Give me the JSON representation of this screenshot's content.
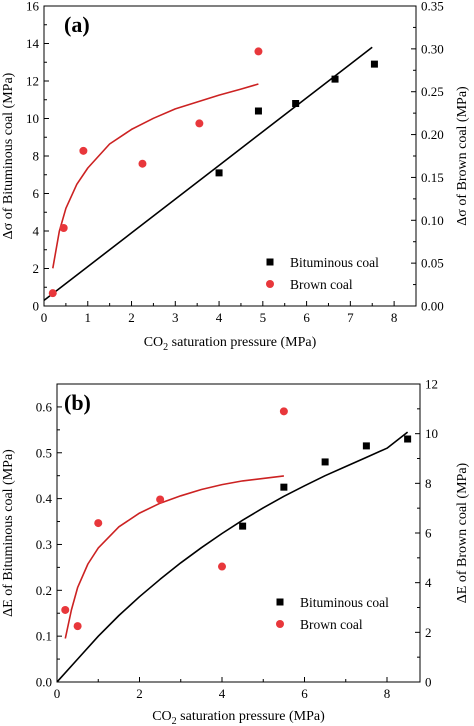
{
  "chart_data": [
    {
      "panel_label": "(a)",
      "type": "scatter",
      "xlabel_parts": [
        "CO",
        "2",
        " saturation pressure (MPa)"
      ],
      "ylabel_left_parts": [
        "Δσ of Bituminous coal (MPa)"
      ],
      "ylabel_right_parts": [
        "Δσ of Brown coal (MPa)"
      ],
      "xlim": [
        0,
        8.5
      ],
      "xticks": [
        0,
        1,
        2,
        3,
        4,
        5,
        6,
        7,
        8
      ],
      "xtick_labels": [
        "0",
        "1",
        "2",
        "3",
        "4",
        "5",
        "6",
        "7",
        "8"
      ],
      "ylim_left": [
        0,
        16
      ],
      "yticks_left": [
        0,
        2,
        4,
        6,
        8,
        10,
        12,
        14,
        16
      ],
      "ytick_labels_left": [
        "0",
        "2",
        "4",
        "6",
        "8",
        "10",
        "12",
        "14",
        "16"
      ],
      "ylim_right": [
        0,
        0.35
      ],
      "yticks_right": [
        0,
        0.05,
        0.1,
        0.15,
        0.2,
        0.25,
        0.3,
        0.35
      ],
      "ytick_labels_right": [
        "0.00",
        "0.05",
        "0.10",
        "0.15",
        "0.20",
        "0.25",
        "0.30",
        "0.35"
      ],
      "legend_position": "right-middle",
      "grid": false,
      "series": [
        {
          "name": "Bituminous coal",
          "axis": "left",
          "marker": "square",
          "color": "#000000",
          "x": [
            4.0,
            4.9,
            5.75,
            6.65,
            7.55
          ],
          "y": [
            7.1,
            10.4,
            10.8,
            12.1,
            12.9
          ]
        },
        {
          "name": "Brown coal",
          "axis": "right",
          "marker": "circle",
          "color": "#e8373b",
          "x": [
            0.2,
            0.45,
            0.9,
            2.25,
            3.55,
            4.9
          ],
          "y": [
            0.015,
            0.091,
            0.181,
            0.166,
            0.213,
            0.297
          ]
        }
      ],
      "fits": [
        {
          "axis": "left",
          "color": "#000000",
          "x": [
            0,
            1,
            2,
            3,
            4,
            5,
            6,
            7,
            7.5
          ],
          "y": [
            0.3,
            2.1,
            3.9,
            5.7,
            7.5,
            9.3,
            11.1,
            12.9,
            13.8
          ]
        },
        {
          "axis": "right",
          "color": "#cc2222",
          "x": [
            0.2,
            0.35,
            0.5,
            0.75,
            1.0,
            1.5,
            2.0,
            2.5,
            3.0,
            3.5,
            4.0,
            4.5,
            4.9
          ],
          "y": [
            0.044,
            0.087,
            0.114,
            0.142,
            0.161,
            0.189,
            0.206,
            0.219,
            0.23,
            0.238,
            0.246,
            0.253,
            0.259
          ]
        }
      ]
    },
    {
      "panel_label": "(b)",
      "type": "scatter",
      "xlabel_parts": [
        "CO",
        "2",
        " saturation pressure (MPa)"
      ],
      "ylabel_left_parts": [
        "ΔE of Bituminous coal (MPa)"
      ],
      "ylabel_right_parts": [
        "ΔE of Brown coal (MPa)"
      ],
      "xlim": [
        0,
        8.8
      ],
      "xticks": [
        0,
        2,
        4,
        6,
        8
      ],
      "xtick_labels": [
        "0",
        "2",
        "4",
        "6",
        "8"
      ],
      "ylim_left": [
        0,
        0.65
      ],
      "yticks_left": [
        0,
        0.1,
        0.2,
        0.3,
        0.4,
        0.5,
        0.6
      ],
      "ytick_labels_left": [
        "0.0",
        "0.1",
        "0.2",
        "0.3",
        "0.4",
        "0.5",
        "0.6"
      ],
      "ylim_right": [
        0,
        12
      ],
      "yticks_right": [
        0,
        2,
        4,
        6,
        8,
        10,
        12
      ],
      "ytick_labels_right": [
        "0",
        "2",
        "4",
        "6",
        "8",
        "10",
        "12"
      ],
      "legend_position": "bottom-right",
      "grid": false,
      "series": [
        {
          "name": "Bituminous coal",
          "axis": "left",
          "marker": "square",
          "color": "#000000",
          "x": [
            4.5,
            5.5,
            6.5,
            7.5,
            8.5
          ],
          "y": [
            0.34,
            0.425,
            0.48,
            0.515,
            0.53
          ]
        },
        {
          "name": "Brown coal",
          "axis": "right",
          "marker": "circle",
          "color": "#e8373b",
          "x": [
            0.2,
            0.5,
            1.0,
            2.5,
            4.0,
            5.5
          ],
          "y": [
            2.9,
            2.25,
            6.4,
            7.35,
            4.65,
            10.9
          ]
        }
      ],
      "fits": [
        {
          "axis": "left",
          "color": "#000000",
          "x": [
            0,
            0.5,
            1,
            1.5,
            2,
            2.5,
            3,
            3.5,
            4,
            4.5,
            5,
            5.5,
            6,
            6.5,
            7,
            7.5,
            8,
            8.5
          ],
          "y": [
            0.0,
            0.05,
            0.1,
            0.145,
            0.186,
            0.224,
            0.26,
            0.293,
            0.324,
            0.353,
            0.38,
            0.405,
            0.428,
            0.45,
            0.47,
            0.49,
            0.51,
            0.545
          ]
        },
        {
          "axis": "right",
          "color": "#cc2222",
          "x": [
            0.2,
            0.35,
            0.5,
            0.75,
            1.0,
            1.5,
            2.0,
            2.5,
            3.0,
            3.5,
            4.0,
            4.5,
            5.0,
            5.5
          ],
          "y": [
            1.75,
            2.9,
            3.8,
            4.75,
            5.4,
            6.25,
            6.8,
            7.2,
            7.5,
            7.75,
            7.95,
            8.1,
            8.2,
            8.3
          ]
        }
      ]
    }
  ]
}
